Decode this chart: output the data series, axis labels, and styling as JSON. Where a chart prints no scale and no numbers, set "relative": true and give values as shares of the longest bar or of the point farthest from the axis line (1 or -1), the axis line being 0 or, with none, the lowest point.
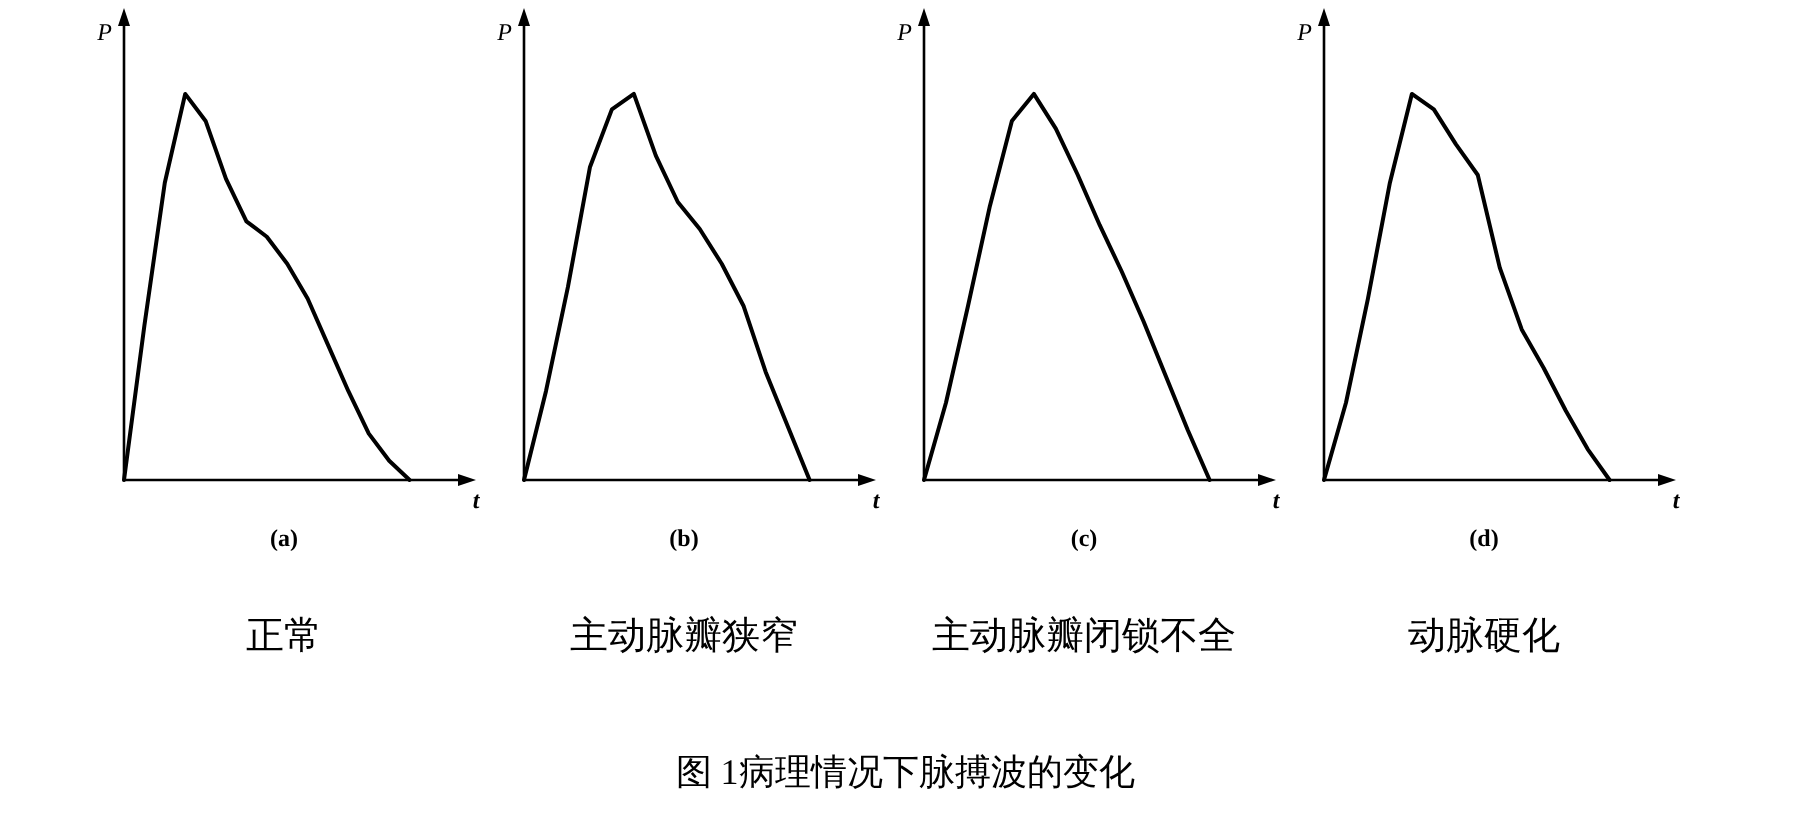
{
  "chart_data": [
    {
      "type": "line",
      "relative": true,
      "title": "正常",
      "subtitle": "(a)",
      "xlabel": "t",
      "ylabel": "P",
      "categories": [
        null,
        null,
        null,
        null,
        null,
        null,
        null,
        null,
        null,
        null,
        null,
        null,
        null,
        null,
        null
      ],
      "series": [
        {
          "color": "#000000",
          "values": [
            0,
            0.4,
            0.77,
            1,
            0.93,
            0.78,
            0.67,
            0.63,
            0.56,
            0.47,
            0.35,
            0.23,
            0.12,
            0.05,
            0
          ]
        }
      ]
    },
    {
      "type": "line",
      "relative": true,
      "title": "主动脉瓣狭窄",
      "subtitle": "(b)",
      "xlabel": "t",
      "ylabel": "P",
      "categories": [
        null,
        null,
        null,
        null,
        null,
        null,
        null,
        null,
        null,
        null,
        null,
        null,
        null,
        null
      ],
      "series": [
        {
          "color": "#000000",
          "values": [
            0,
            0.23,
            0.5,
            0.81,
            0.96,
            1,
            0.84,
            0.72,
            0.65,
            0.56,
            0.45,
            0.28,
            0.14,
            0
          ]
        }
      ]
    },
    {
      "type": "line",
      "relative": true,
      "title": "主动脉瓣闭锁不全",
      "subtitle": "(c)",
      "xlabel": "t",
      "ylabel": "P",
      "categories": [
        null,
        null,
        null,
        null,
        null,
        null,
        null,
        null,
        null,
        null,
        null,
        null,
        null,
        null
      ],
      "series": [
        {
          "color": "#000000",
          "values": [
            0,
            0.2,
            0.45,
            0.71,
            0.93,
            1,
            0.91,
            0.79,
            0.66,
            0.54,
            0.41,
            0.27,
            0.13,
            0
          ]
        }
      ]
    },
    {
      "type": "line",
      "relative": true,
      "title": "动脉硬化",
      "subtitle": "(d)",
      "xlabel": "t",
      "ylabel": "P",
      "categories": [
        null,
        null,
        null,
        null,
        null,
        null,
        null,
        null,
        null,
        null,
        null,
        null,
        null,
        null
      ],
      "annotations": [
        "图 1病理情况下脉搏波的变化"
      ],
      "series": [
        {
          "color": "#000000",
          "values": [
            0,
            0.2,
            0.47,
            0.77,
            1,
            0.96,
            0.87,
            0.79,
            0.55,
            0.39,
            0.29,
            0.18,
            0.08,
            0
          ]
        }
      ]
    }
  ]
}
